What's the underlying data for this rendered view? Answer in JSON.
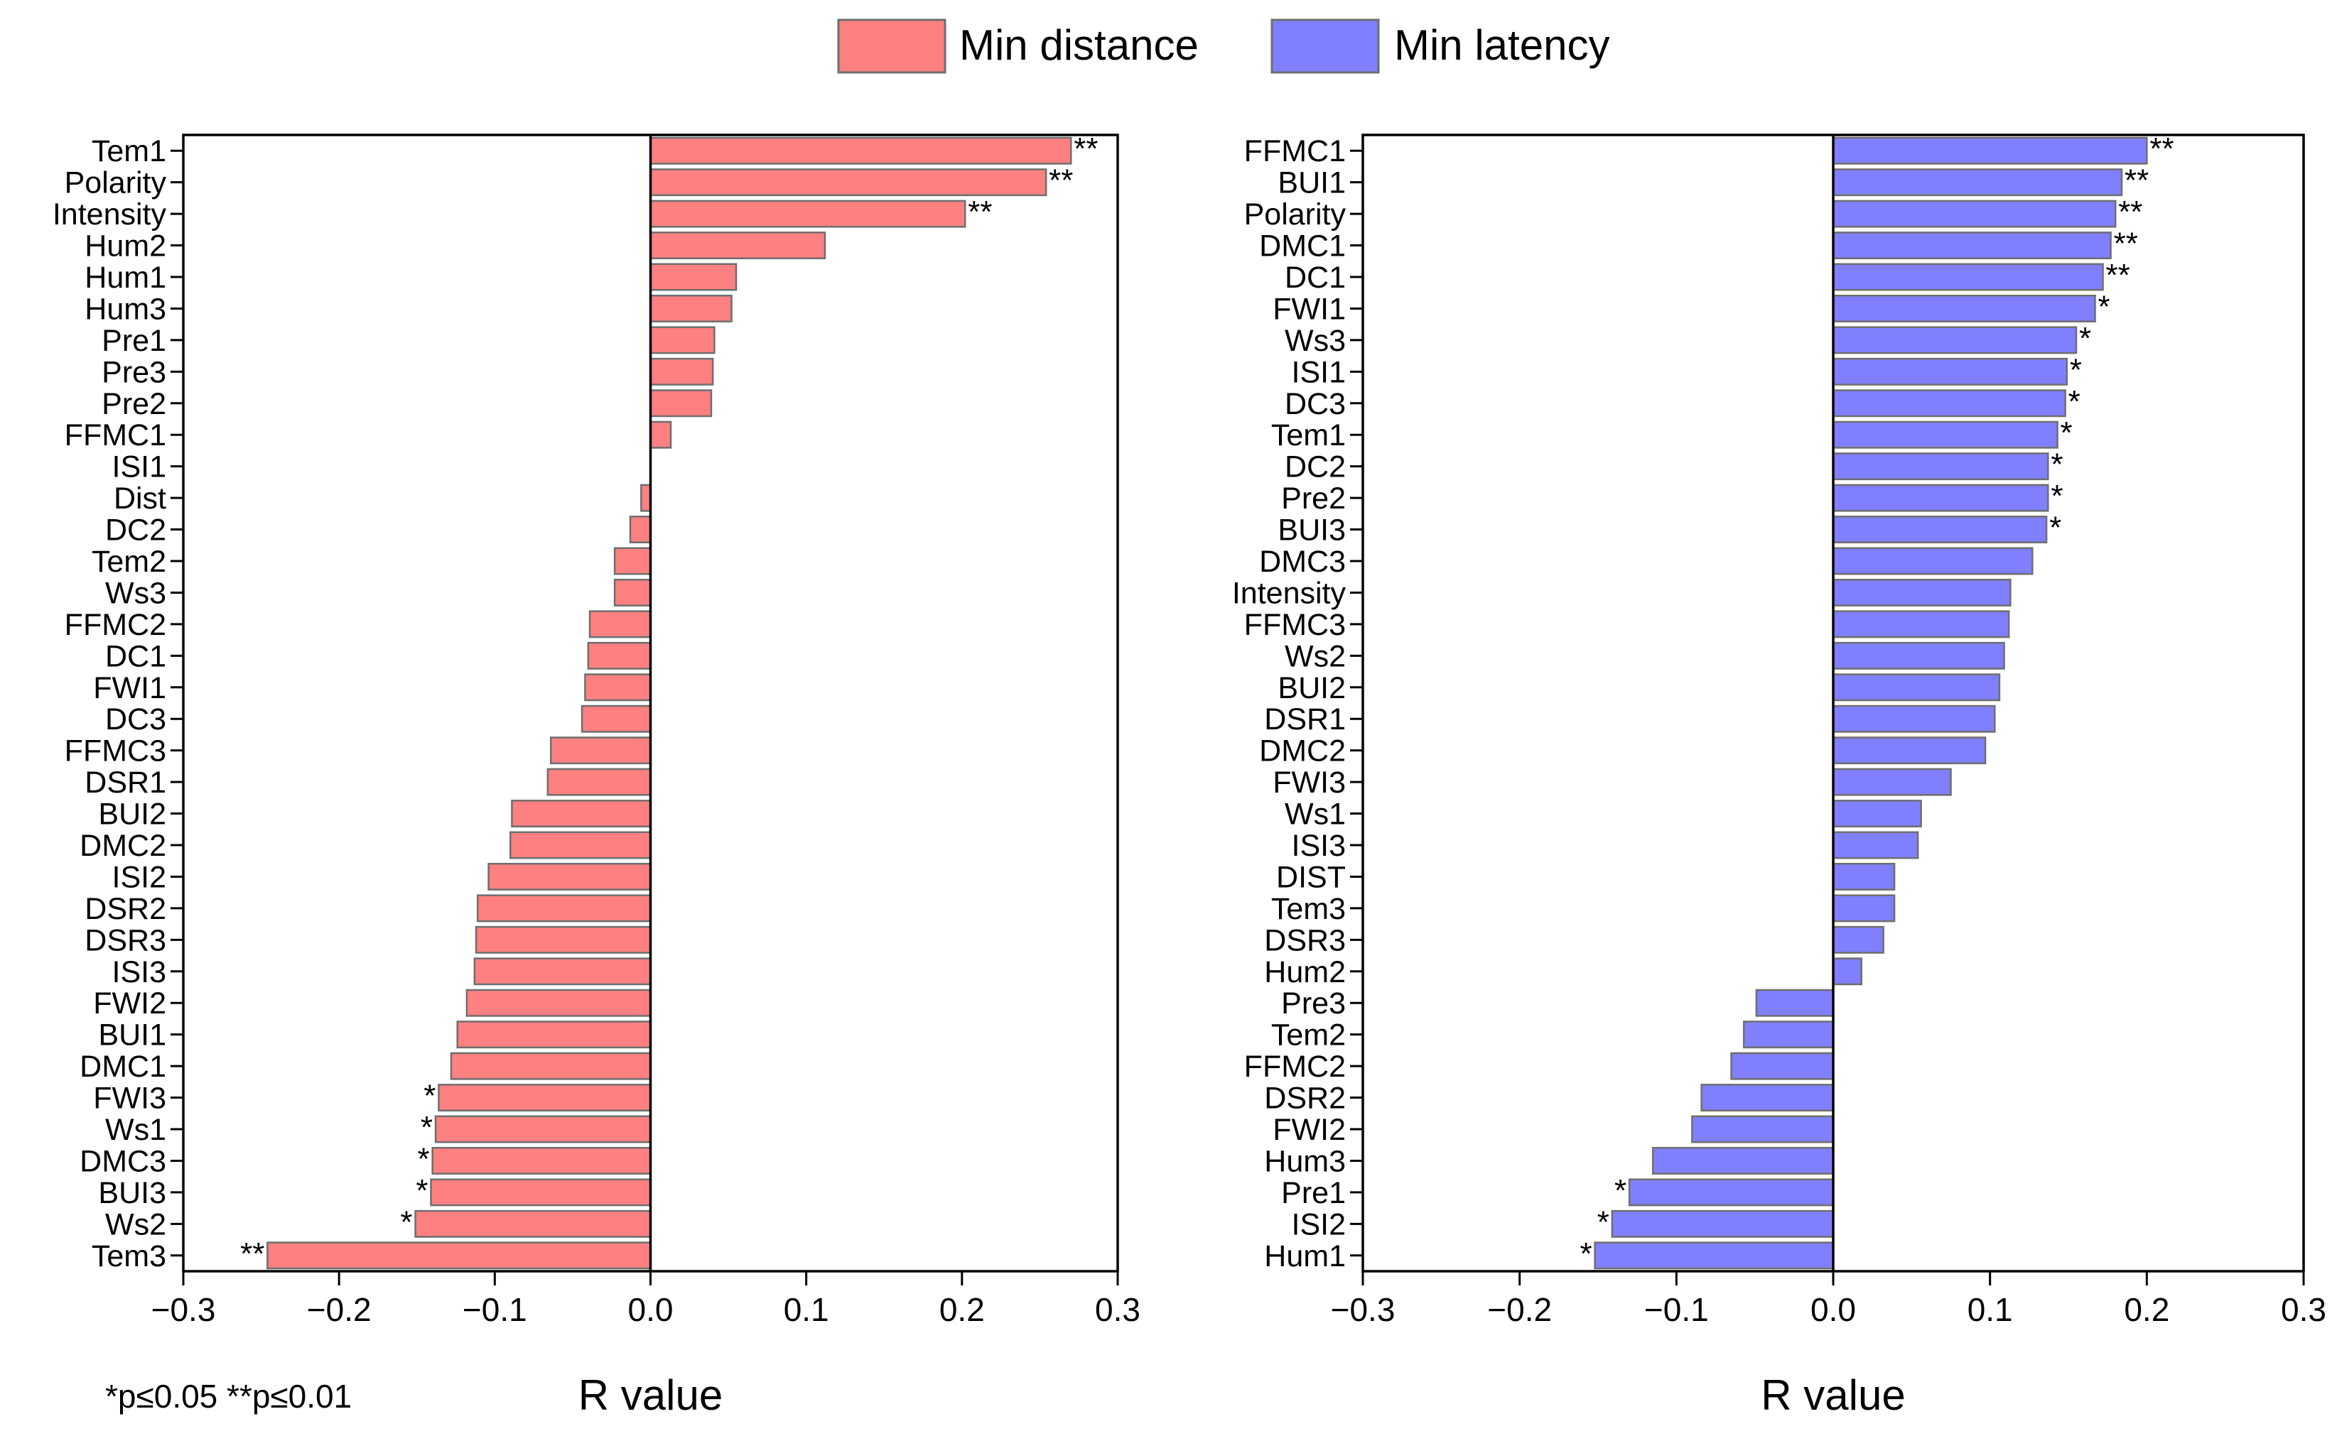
{
  "legend": [
    {
      "label": "Min distance",
      "color": "#ff8080"
    },
    {
      "label": "Min latency",
      "color": "#8080ff"
    }
  ],
  "footnote": "*p≤0.05   **p≤0.01",
  "chart_data": [
    {
      "type": "bar",
      "orientation": "horizontal",
      "series_name": "Min distance",
      "color": "#ff8080",
      "xlabel": "R value",
      "ylabel": "",
      "xlim": [
        -0.3,
        0.3
      ],
      "xticks": [
        -0.3,
        -0.2,
        -0.1,
        0.0,
        0.1,
        0.2,
        0.3
      ],
      "xtick_labels": [
        "−0.3",
        "−0.2",
        "−0.1",
        "0.0",
        "0.1",
        "0.2",
        "0.3"
      ],
      "categories": [
        "Tem1",
        "Polarity",
        "Intensity",
        "Hum2",
        "Hum1",
        "Hum3",
        "Pre1",
        "Pre3",
        "Pre2",
        "FFMC1",
        "ISI1",
        "Dist",
        "DC2",
        "Tem2",
        "Ws3",
        "FFMC2",
        "DC1",
        "FWI1",
        "DC3",
        "FFMC3",
        "DSR1",
        "BUI2",
        "DMC2",
        "ISI2",
        "DSR2",
        "DSR3",
        "ISI3",
        "FWI2",
        "BUI1",
        "DMC1",
        "FWI3",
        "Ws1",
        "DMC3",
        "BUI3",
        "Ws2",
        "Tem3"
      ],
      "values": [
        0.27,
        0.254,
        0.202,
        0.112,
        0.055,
        0.052,
        0.041,
        0.04,
        0.039,
        0.013,
        0.0,
        -0.006,
        -0.013,
        -0.023,
        -0.023,
        -0.039,
        -0.04,
        -0.042,
        -0.044,
        -0.064,
        -0.066,
        -0.089,
        -0.09,
        -0.104,
        -0.111,
        -0.112,
        -0.113,
        -0.118,
        -0.124,
        -0.128,
        -0.136,
        -0.138,
        -0.14,
        -0.141,
        -0.151,
        -0.246
      ],
      "significance": [
        "**",
        "**",
        "**",
        "",
        "",
        "",
        "",
        "",
        "",
        "",
        "",
        "",
        "",
        "",
        "",
        "",
        "",
        "",
        "",
        "",
        "",
        "",
        "",
        "",
        "",
        "",
        "",
        "",
        "",
        "",
        "*",
        "*",
        "*",
        "*",
        "*",
        "**"
      ]
    },
    {
      "type": "bar",
      "orientation": "horizontal",
      "series_name": "Min latency",
      "color": "#8080ff",
      "xlabel": "R value",
      "ylabel": "",
      "xlim": [
        -0.3,
        0.3
      ],
      "xticks": [
        -0.3,
        -0.2,
        -0.1,
        0.0,
        0.1,
        0.2,
        0.3
      ],
      "xtick_labels": [
        "−0.3",
        "−0.2",
        "−0.1",
        "0.0",
        "0.1",
        "0.2",
        "0.3"
      ],
      "categories": [
        "FFMC1",
        "BUI1",
        "Polarity",
        "DMC1",
        "DC1",
        "FWI1",
        "Ws3",
        "ISI1",
        "DC3",
        "Tem1",
        "DC2",
        "Pre2",
        "BUI3",
        "DMC3",
        "Intensity",
        "FFMC3",
        "Ws2",
        "BUI2",
        "DSR1",
        "DMC2",
        "FWI3",
        "Ws1",
        "ISI3",
        "DIST",
        "Tem3",
        "DSR3",
        "Hum2",
        "Pre3",
        "Tem2",
        "FFMC2",
        "DSR2",
        "FWI2",
        "Hum3",
        "Pre1",
        "ISI2",
        "Hum1"
      ],
      "values": [
        0.2,
        0.184,
        0.18,
        0.177,
        0.172,
        0.167,
        0.155,
        0.149,
        0.148,
        0.143,
        0.137,
        0.137,
        0.136,
        0.127,
        0.113,
        0.112,
        0.109,
        0.106,
        0.103,
        0.097,
        0.075,
        0.056,
        0.054,
        0.039,
        0.039,
        0.032,
        0.018,
        -0.049,
        -0.057,
        -0.065,
        -0.084,
        -0.09,
        -0.115,
        -0.13,
        -0.141,
        -0.152
      ],
      "significance": [
        "**",
        "**",
        "**",
        "**",
        "**",
        "*",
        "*",
        "*",
        "*",
        "*",
        "*",
        "*",
        "*",
        "",
        "",
        "",
        "",
        "",
        "",
        "",
        "",
        "",
        "",
        "",
        "",
        "",
        "",
        "",
        "",
        "",
        "",
        "",
        "",
        "*",
        "*",
        "*"
      ]
    }
  ]
}
